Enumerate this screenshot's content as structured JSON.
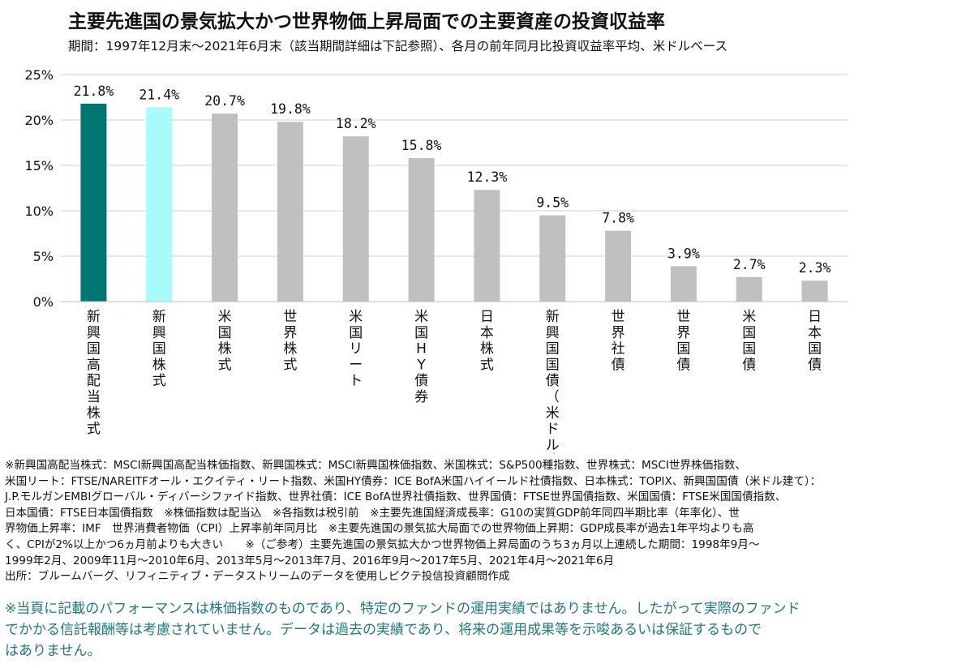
{
  "page": {
    "title": "主要先進国の景気拡大かつ世界物価上昇局面での主要資産の投資収益率",
    "subtitle": "期間：1997年12月末～2021年6月末（該当期間詳細は下記参照）、各月の前年同月比投資収益率平均、米ドルベース",
    "notes": "※新興国高配当株式：MSCI新興国高配当株価指数、新興国株式：MSCI新興国株価指数、米国株式：S&P500種指数、世界株式：MSCI世界株価指数、\n米国リート：FTSE/NAREITFオール・エクイティ・リート指数、米国HY債券：ICE BofA米国ハイイールド社債指数、日本株式：TOPIX、新興国国債（米ドル建て）：\nJ.P.モルガンEMBIグローバル・ディバーシファイド指数、世界社債：ICE BofA世界社債指数、世界国債：FTSE世界国債指数、米国国債：FTSE米国国債指数、\n日本国債：FTSE日本国債指数　※株価指数は配当込　※各指数は税引前　※主要先進国経済成長率：G10の実質GDP前年同四半期比率（年率化）、世\n界物価上昇率：IMF　世界消費者物価（CPI）上昇率前年同月比　※主要先進国の景気拡大局面での世界物価上昇期：GDP成長率が過去1年平均よりも高\nく、CPIが2%以上かつ6ヵ月前よりも大きい　　※（ご参考）主要先進国の景気拡大かつ世界物価上昇局面のうち3ヵ月以上連続した期間：1998年9月～\n1999年2月、2009年11月～2010年6月、2013年5月～2013年7月、2016年9月～2017年5月、2021年4月～2021年6月\n出所：ブルームバーグ、リフィニティブ・データストリームのデータを使用しピクテ投信投資顧問作成",
    "disclaimer": "※当頁に記載のパフォーマンスは株価指数のものであり、特定のファンドの運用実績ではありません。したがって実際のファンド\nでかかる信託報酬等は考慮されていません。データは過去の実績であり、将来の運用成果等を示唆あるいは保証するもので\nはありません。"
  },
  "colors": {
    "highlight_dark": "#007672",
    "highlight_light": "#a9fafa",
    "default_bar": "#c0c0c0",
    "grid": "#d0d0d0"
  },
  "chart_data": {
    "type": "bar",
    "categories": [
      "新興国高配当株式",
      "新興国株式",
      "米国株式",
      "世界株式",
      "米国リート",
      "米国HY債券",
      "日本株式",
      "新興国国債（米ドル建て）",
      "世界社債",
      "世界国債",
      "米国国債",
      "日本国債"
    ],
    "values": [
      21.8,
      21.4,
      20.7,
      19.8,
      18.2,
      15.8,
      12.3,
      9.5,
      7.8,
      3.9,
      2.7,
      2.3
    ],
    "value_labels": [
      "21.8%",
      "21.4%",
      "20.7%",
      "19.8%",
      "18.2%",
      "15.8%",
      "12.3%",
      "9.5%",
      "7.8%",
      "3.9%",
      "2.7%",
      "2.3%"
    ],
    "bar_colors": [
      "#007672",
      "#a9fafa",
      "#c0c0c0",
      "#c0c0c0",
      "#c0c0c0",
      "#c0c0c0",
      "#c0c0c0",
      "#c0c0c0",
      "#c0c0c0",
      "#c0c0c0",
      "#c0c0c0",
      "#c0c0c0"
    ],
    "yticks": [
      0,
      5,
      10,
      15,
      20,
      25
    ],
    "ytick_labels": [
      "0%",
      "5%",
      "10%",
      "15%",
      "20%",
      "25%"
    ],
    "ylim": [
      0,
      25
    ],
    "grid": true,
    "legend": "none"
  }
}
